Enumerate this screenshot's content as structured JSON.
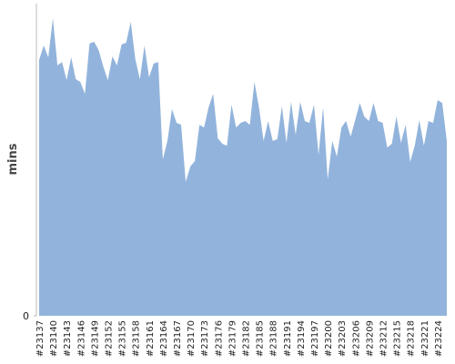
{
  "chart_data": {
    "type": "area",
    "y_label": "mins",
    "color": "#92b4dc",
    "categories": [
      "#23137",
      null,
      null,
      "#23140",
      null,
      null,
      "#23143",
      null,
      null,
      "#23146",
      null,
      null,
      "#23149",
      null,
      null,
      "#23152",
      null,
      null,
      "#23155",
      null,
      null,
      "#23158",
      null,
      null,
      "#23161",
      null,
      null,
      "#23164",
      null,
      null,
      "#23167",
      null,
      null,
      "#23170",
      null,
      null,
      "#23173",
      null,
      null,
      "#23176",
      null,
      null,
      "#23179",
      null,
      null,
      "#23182",
      null,
      null,
      "#23185",
      null,
      null,
      "#23188",
      null,
      null,
      "#23191",
      null,
      null,
      "#23194",
      null,
      null,
      "#23197",
      null,
      null,
      "#23200",
      null,
      null,
      "#23203",
      null,
      null,
      "#23206",
      null,
      null,
      "#23209",
      null,
      null,
      "#23212",
      null,
      null,
      "#23215",
      null,
      null,
      "#23218",
      null,
      null,
      "#23221",
      null,
      null,
      "#23224",
      null,
      null
    ],
    "values": [
      82,
      86.6,
      82.8,
      95.3,
      80.2,
      81.3,
      75.5,
      82.8,
      75.8,
      74.9,
      71.1,
      87.2,
      87.8,
      85.1,
      79.9,
      75.5,
      83.1,
      80.2,
      86.9,
      87.5,
      94.2,
      82.2,
      75.8,
      86.6,
      76.4,
      80.8,
      81.3,
      50.1,
      56,
      66.2,
      61.8,
      61.2,
      42.9,
      47.8,
      49.6,
      61.2,
      60.3,
      66.8,
      71.1,
      56.9,
      55.1,
      54.5,
      67.6,
      60.3,
      61.8,
      62.4,
      61.2,
      74.9,
      66.8,
      56,
      62.4,
      56,
      56.6,
      67.1,
      55.4,
      68.5,
      58,
      68.5,
      62.4,
      61.8,
      67.6,
      51.6,
      66.8,
      43.7,
      56,
      51,
      60.3,
      62.4,
      57.4,
      62.7,
      68.2,
      63.8,
      62.4,
      68.2,
      62.4,
      61.8,
      53.9,
      55.1,
      63.8,
      55.4,
      61.2,
      49.3,
      54.5,
      62.7,
      54.5,
      62.4,
      61.8,
      69.1,
      68.2,
      56
    ],
    "ylim": [
      0,
      100
    ],
    "yticks": [
      0
    ]
  }
}
